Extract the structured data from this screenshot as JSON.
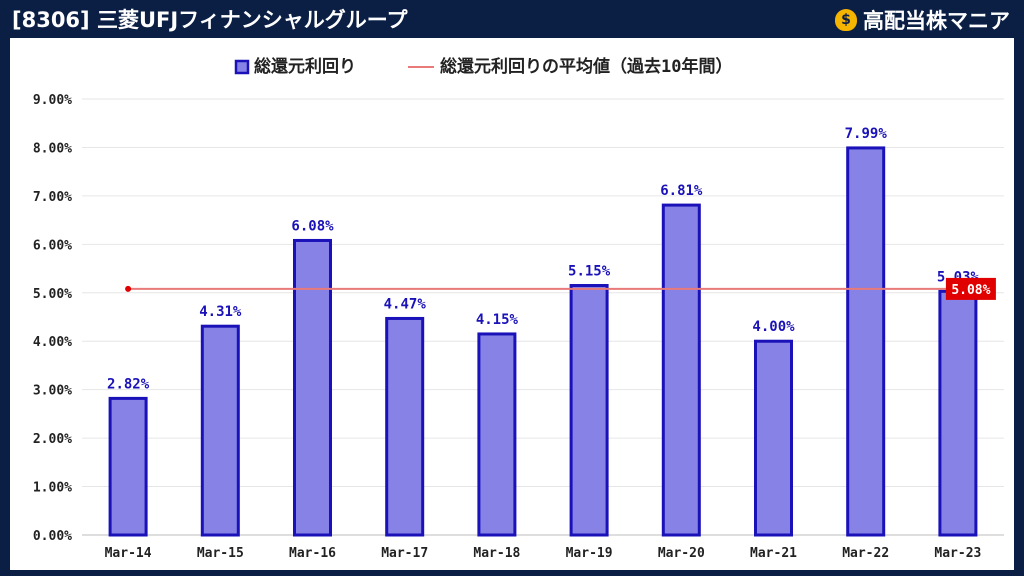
{
  "header": {
    "title": "[8306] 三菱UFJフィナンシャルグループ",
    "brand": "高配当株マニア",
    "brand_icon": "money-bag-icon"
  },
  "chart_data": {
    "type": "bar",
    "categories": [
      "Mar-14",
      "Mar-15",
      "Mar-16",
      "Mar-17",
      "Mar-18",
      "Mar-19",
      "Mar-20",
      "Mar-21",
      "Mar-22",
      "Mar-23"
    ],
    "series": [
      {
        "name": "総還元利回り",
        "values": [
          2.82,
          4.31,
          6.08,
          4.47,
          4.15,
          5.15,
          6.81,
          4.0,
          7.99,
          5.03
        ],
        "data_labels": [
          "2.82%",
          "4.31%",
          "6.08%",
          "4.47%",
          "4.15%",
          "5.15%",
          "6.81%",
          "4.00%",
          "7.99%",
          "5.03%"
        ],
        "type": "bar",
        "color": "#8682e6",
        "edge_color": "#1a12b8"
      }
    ],
    "reference_line": {
      "name": "総還元利回りの平均値（過去10年間）",
      "value": 5.08,
      "label": "5.08%",
      "color": "#e87a7a",
      "label_color": "#e00000"
    },
    "ylim": [
      0,
      9
    ],
    "yticks": [
      "0.00%",
      "1.00%",
      "2.00%",
      "3.00%",
      "4.00%",
      "5.00%",
      "6.00%",
      "7.00%",
      "8.00%",
      "9.00%"
    ],
    "legend_position": "top",
    "grid": true,
    "xlabel": "",
    "ylabel": ""
  }
}
